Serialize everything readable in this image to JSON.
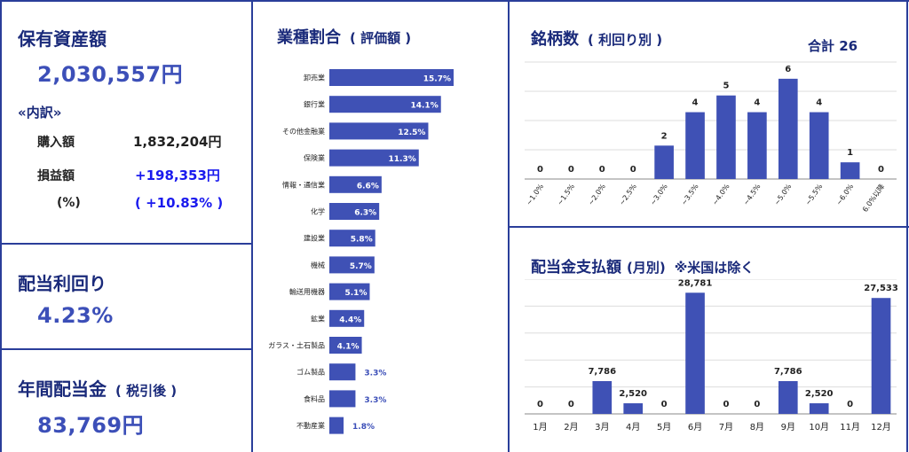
{
  "summary": {
    "assets_title": "保有資産額",
    "assets_value": "2,030,557円",
    "breakdown_title": "«内訳»",
    "purchase_label": "購入額",
    "purchase_value": "1,832,204円",
    "pl_label": "損益額",
    "pl_value": "+198,353円",
    "pct_label": "(%)",
    "pct_value": "( +10.83% )",
    "yield_title": "配当利回り",
    "yield_value": "4.23%",
    "annual_title": "年間配当金",
    "annual_sub": "( 税引後 )",
    "annual_value": "83,769円"
  },
  "colors": {
    "accent": "#3c4fb8",
    "bar": "#3f51b5",
    "frame": "#2a3e9a",
    "positive": "#1a1aee",
    "title": "#1a2a7a"
  },
  "chart_data": [
    {
      "type": "bar",
      "orientation": "horizontal",
      "title": "業種割合",
      "subtitle": "( 評価額 )",
      "categories": [
        "卸売業",
        "銀行業",
        "その他金融業",
        "保険業",
        "情報・通信業",
        "化学",
        "建設業",
        "機械",
        "輸送用機器",
        "鉱業",
        "ガラス・土石製品",
        "ゴム製品",
        "食料品",
        "不動産業"
      ],
      "values": [
        15.7,
        14.1,
        12.5,
        11.3,
        6.6,
        6.3,
        5.8,
        5.7,
        5.1,
        4.4,
        4.1,
        3.3,
        3.3,
        1.8
      ],
      "value_labels": [
        "15.7%",
        "14.1%",
        "12.5%",
        "11.3%",
        "6.6%",
        "6.3%",
        "5.8%",
        "5.7%",
        "5.1%",
        "4.4%",
        "4.1%",
        "3.3%",
        "3.3%",
        "1.8%"
      ],
      "grid": false
    },
    {
      "type": "bar",
      "title": "銘柄数",
      "subtitle": "( 利回り別 )",
      "total_label": "合計 26",
      "categories": [
        "~1.0%",
        "~1.5%",
        "~2.0%",
        "~2.5%",
        "~3.0%",
        "~3.5%",
        "~4.0%",
        "~4.5%",
        "~5.0%",
        "~5.5%",
        "~6.0%",
        "6.0%以降"
      ],
      "values": [
        0,
        0,
        0,
        0,
        2,
        4,
        5,
        4,
        6,
        4,
        1,
        0
      ],
      "ylim": [
        0,
        7
      ],
      "grid": true
    },
    {
      "type": "bar",
      "title": "配当金支払額",
      "subtitle": "(月別)",
      "note": "※米国は除く",
      "categories": [
        "1月",
        "2月",
        "3月",
        "4月",
        "5月",
        "6月",
        "7月",
        "8月",
        "9月",
        "10月",
        "11月",
        "12月"
      ],
      "values": [
        0,
        0,
        7786,
        2520,
        0,
        28781,
        0,
        0,
        7786,
        2520,
        0,
        27533
      ],
      "value_labels": [
        "0",
        "0",
        "7,786",
        "2,520",
        "0",
        "28,781",
        "0",
        "0",
        "7,786",
        "2,520",
        "0",
        "27,533"
      ],
      "ylim": [
        0,
        35000
      ],
      "grid": true
    }
  ]
}
